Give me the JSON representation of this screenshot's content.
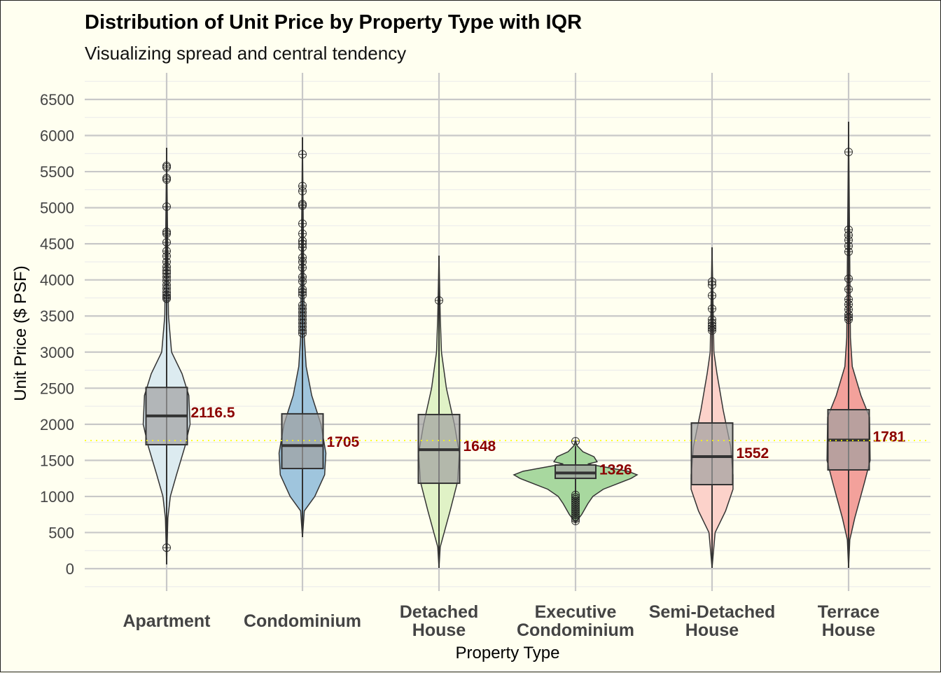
{
  "chart_data": {
    "type": "violin+box",
    "title": "Distribution of Unit Price by Property Type with IQR",
    "subtitle": "Visualizing spread and central tendency",
    "xlabel": "Property Type",
    "ylabel": "Unit Price ($ PSF)",
    "ylim": [
      -250,
      6850
    ],
    "yticks": [
      0,
      500,
      1000,
      1500,
      2000,
      2500,
      3000,
      3500,
      4000,
      4500,
      5000,
      5500,
      6000,
      6500
    ],
    "grid": true,
    "legend": "none",
    "reference_line": {
      "value": 1775,
      "style": "dotted",
      "color": "#ffff00"
    },
    "categories": [
      {
        "label": [
          "Apartment"
        ],
        "color": "#dcebf0",
        "q1": 1717,
        "median": 2116.5,
        "q3": 2510,
        "median_label": "2116.5",
        "min": 60,
        "max": 5830,
        "outliers": [
          5580,
          5560,
          5410,
          5390,
          5015,
          4665,
          4640,
          4520,
          4400,
          4330,
          4250,
          4180,
          4130,
          4090,
          4040,
          3990,
          3930,
          3880,
          3830,
          3790,
          3760,
          3740,
          290
        ],
        "density": [
          [
            60,
            0
          ],
          [
            700,
            0.02
          ],
          [
            1000,
            0.06
          ],
          [
            1300,
            0.16
          ],
          [
            1700,
            0.3
          ],
          [
            2000,
            0.38
          ],
          [
            2400,
            0.36
          ],
          [
            2700,
            0.25
          ],
          [
            3000,
            0.08
          ],
          [
            3500,
            0.03
          ],
          [
            5830,
            0
          ]
        ]
      },
      {
        "label": [
          "Condominium"
        ],
        "color": "#9fc5dd",
        "q1": 1387,
        "median": 1705,
        "q3": 2145,
        "median_label": "1705",
        "min": 437,
        "max": 5975,
        "outliers": [
          5740,
          5300,
          5230,
          5050,
          5030,
          4780,
          4640,
          4540,
          4500,
          4450,
          4310,
          4250,
          4170,
          4040,
          3980,
          3870,
          3830,
          3790,
          3650,
          3600,
          3550,
          3500,
          3450,
          3400,
          3350,
          3300,
          3260
        ],
        "density": [
          [
            437,
            0
          ],
          [
            800,
            0.03
          ],
          [
            1000,
            0.2
          ],
          [
            1300,
            0.36
          ],
          [
            1600,
            0.38
          ],
          [
            2000,
            0.3
          ],
          [
            2400,
            0.15
          ],
          [
            2800,
            0.06
          ],
          [
            3200,
            0.03
          ],
          [
            5975,
            0
          ]
        ]
      },
      {
        "label": [
          "Detached",
          "House"
        ],
        "color": "#e0f2c6",
        "q1": 1183,
        "median": 1648,
        "q3": 2135,
        "median_label": "1648",
        "min": 10,
        "max": 4336,
        "outliers": [
          3715
        ],
        "density": [
          [
            10,
            0
          ],
          [
            300,
            0.02
          ],
          [
            800,
            0.18
          ],
          [
            1200,
            0.3
          ],
          [
            1600,
            0.33
          ],
          [
            2000,
            0.25
          ],
          [
            2500,
            0.12
          ],
          [
            3000,
            0.04
          ],
          [
            3500,
            0.02
          ],
          [
            4336,
            0
          ]
        ]
      },
      {
        "label": [
          "Executive",
          "Condominium"
        ],
        "color": "#a8d89f",
        "q1": 1251,
        "median": 1326,
        "q3": 1436,
        "median_label": "1326",
        "min": 1040,
        "max": 1700,
        "outliers": [
          1765,
          1020,
          990,
          960,
          930,
          900,
          870,
          840,
          810,
          780,
          750,
          720,
          690,
          660
        ],
        "density": [
          [
            640,
            0
          ],
          [
            750,
            0.1
          ],
          [
            900,
            0.2
          ],
          [
            1000,
            0.28
          ],
          [
            1100,
            0.45
          ],
          [
            1250,
            0.9
          ],
          [
            1300,
            1.0
          ],
          [
            1350,
            0.85
          ],
          [
            1450,
            0.2
          ],
          [
            1480,
            0.35
          ],
          [
            1550,
            0.3
          ],
          [
            1620,
            0.12
          ],
          [
            1700,
            0.03
          ],
          [
            1770,
            0
          ]
        ]
      },
      {
        "label": [
          "Semi-Detached",
          "House"
        ],
        "color": "#fcd2ca",
        "q1": 1164,
        "median": 1552,
        "q3": 2018,
        "median_label": "1552",
        "min": 10,
        "max": 4450,
        "outliers": [
          3977,
          3930,
          3783,
          3600,
          3450,
          3400,
          3360,
          3330,
          3300
        ],
        "density": [
          [
            10,
            0
          ],
          [
            500,
            0.05
          ],
          [
            800,
            0.22
          ],
          [
            1100,
            0.34
          ],
          [
            1300,
            0.34
          ],
          [
            1700,
            0.3
          ],
          [
            2200,
            0.18
          ],
          [
            2700,
            0.08
          ],
          [
            3000,
            0.03
          ],
          [
            4450,
            0
          ]
        ]
      },
      {
        "label": [
          "Terrace",
          "House"
        ],
        "color": "#f3a19b",
        "q1": 1368,
        "median": 1781,
        "q3": 2202,
        "median_label": "1781",
        "min": 10,
        "max": 6190,
        "outliers": [
          5772,
          4695,
          4620,
          4550,
          4470,
          4390,
          4016,
          3870,
          3730,
          3660,
          3590,
          3520,
          3480,
          3450
        ],
        "density": [
          [
            10,
            0
          ],
          [
            400,
            0.02
          ],
          [
            700,
            0.1
          ],
          [
            1200,
            0.26
          ],
          [
            1500,
            0.35
          ],
          [
            2100,
            0.34
          ],
          [
            2400,
            0.2
          ],
          [
            2800,
            0.06
          ],
          [
            3200,
            0.03
          ],
          [
            6190,
            0
          ]
        ]
      }
    ]
  }
}
